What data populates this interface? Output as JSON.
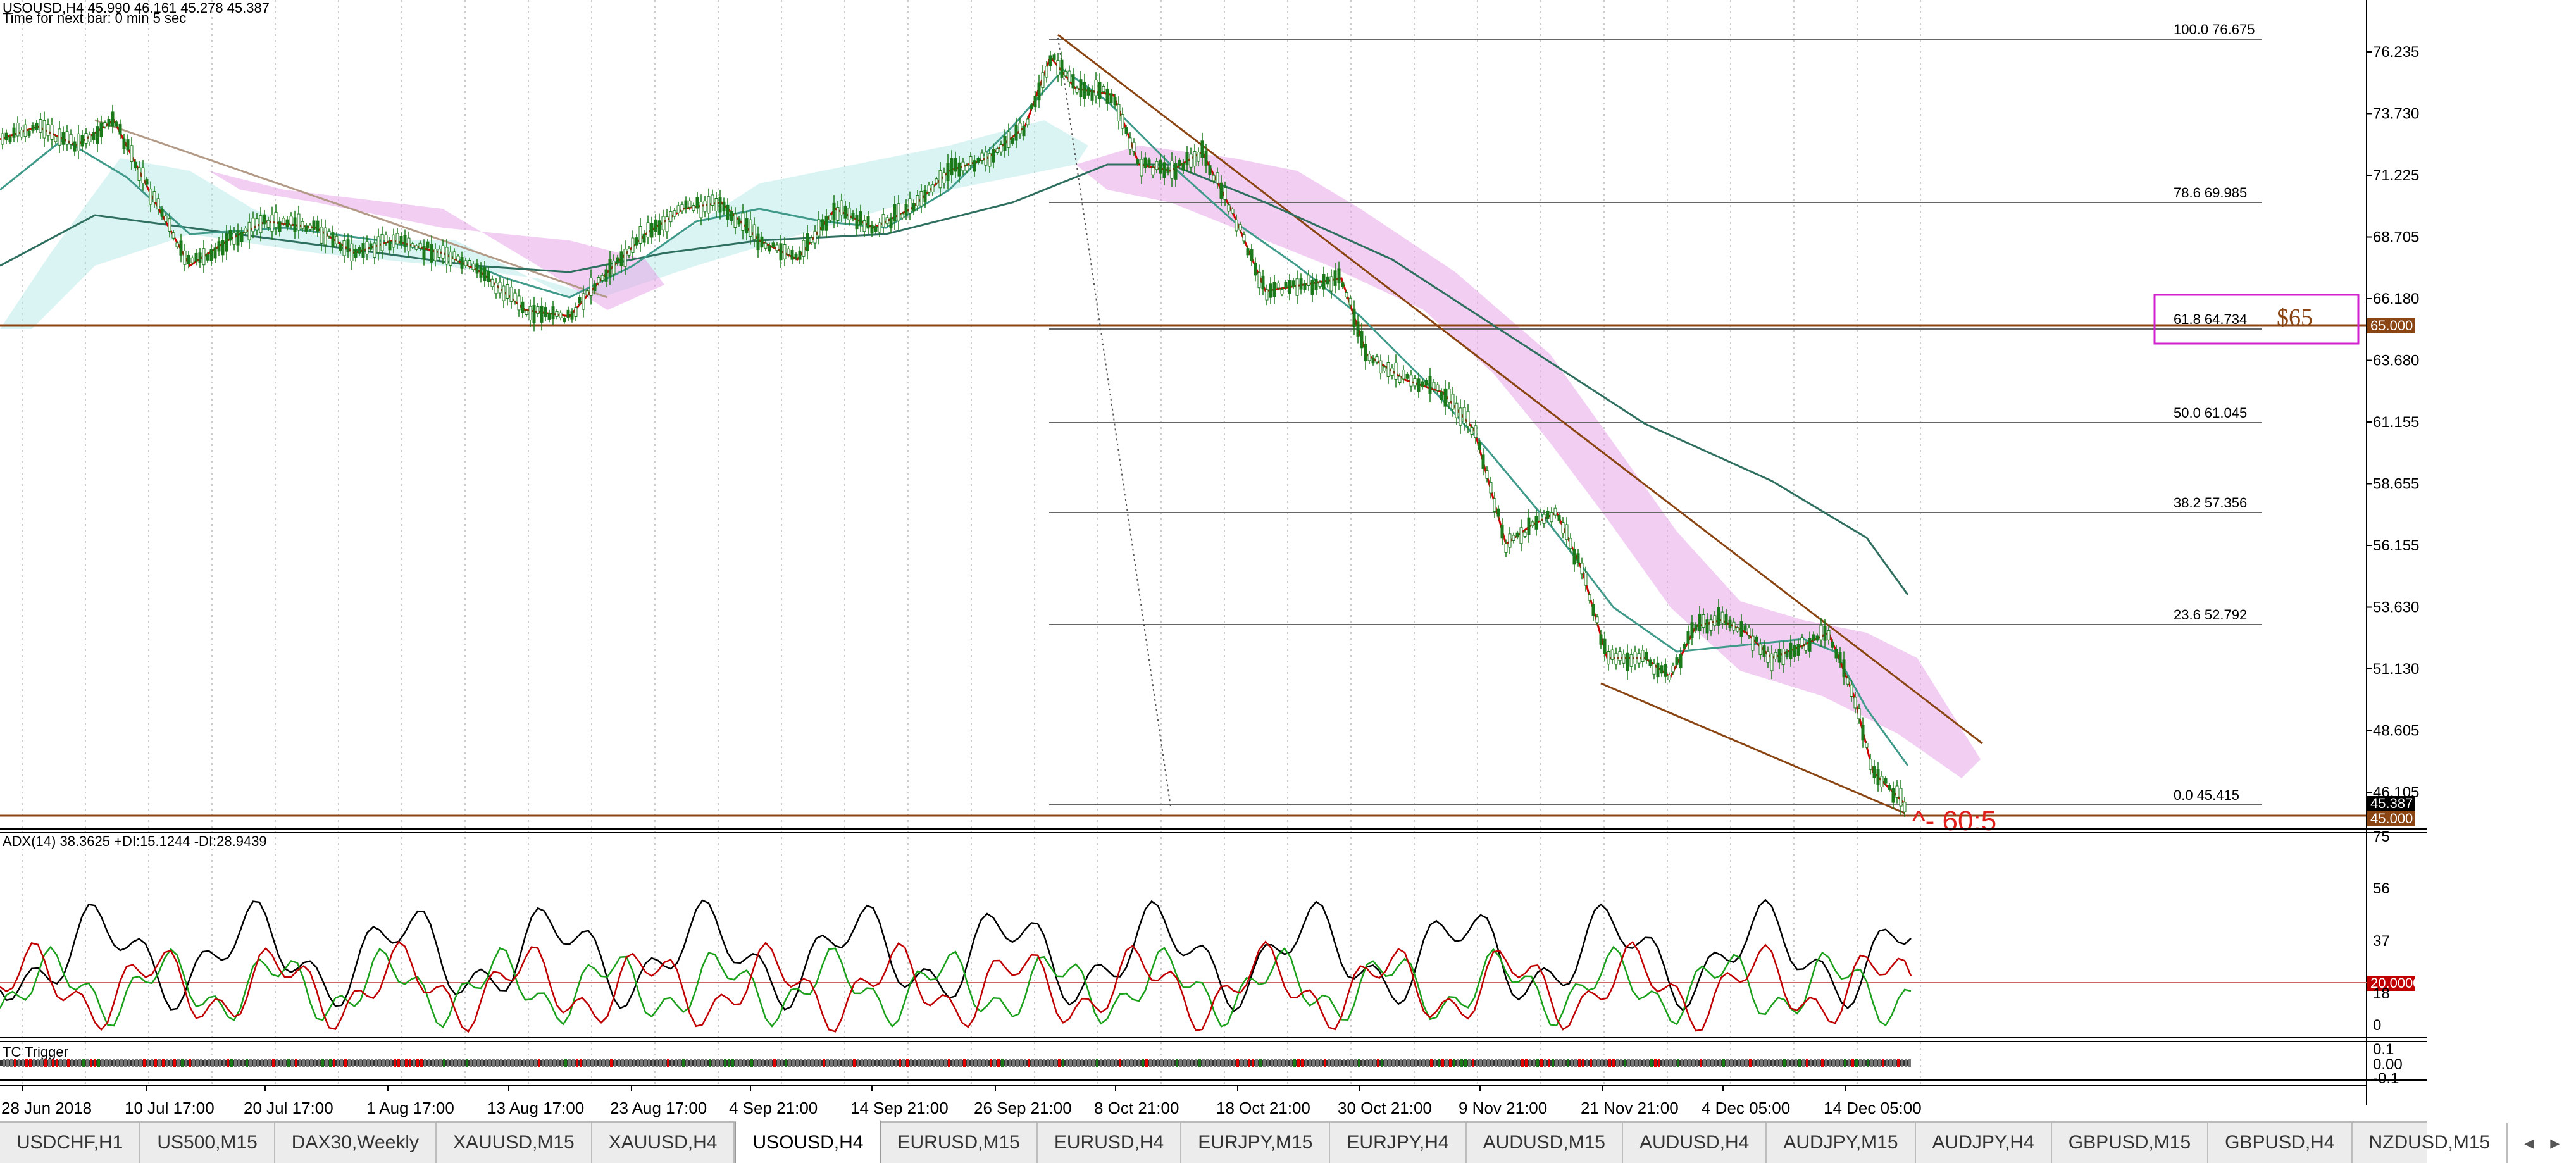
{
  "header": {
    "symbol_line": "USOUSD,H4  45.990 46.161 45.278 45.387",
    "timer_line": "Time for next bar: 0 min 5 sec"
  },
  "price_axis": {
    "labels": [
      "76.235",
      "73.730",
      "71.225",
      "68.705",
      "66.180",
      "63.680",
      "61.155",
      "58.655",
      "56.155",
      "53.630",
      "51.130",
      "48.605",
      "46.105"
    ],
    "current_price": "45.387",
    "line_65": "65.000",
    "line_45": "45.000"
  },
  "fib_levels": [
    {
      "level": "100.0",
      "price": "76.675"
    },
    {
      "level": "78.6",
      "price": "69.985"
    },
    {
      "level": "61.8",
      "price": "64.734"
    },
    {
      "level": "50.0",
      "price": "61.045"
    },
    {
      "level": "38.2",
      "price": "57.356"
    },
    {
      "level": "23.6",
      "price": "52.792"
    },
    {
      "level": "0.0",
      "price": "45.415"
    }
  ],
  "annotations": {
    "box_label": "$65",
    "target_label": "^- 60:5"
  },
  "adx": {
    "title": "ADX(14) 38.3625 +DI:15.1244 -DI:28.9439",
    "axis_labels": [
      "75",
      "56",
      "37",
      "18",
      "0"
    ],
    "level": "20.0000"
  },
  "trigger": {
    "title": "TC Trigger",
    "axis_labels": [
      "0.1",
      "0.00",
      "-0.1"
    ]
  },
  "time_axis": [
    "28 Jun 2018",
    "10 Jul 17:00",
    "20 Jul 17:00",
    "1 Aug 17:00",
    "13 Aug 17:00",
    "23 Aug 17:00",
    "4 Sep 21:00",
    "14 Sep 21:00",
    "26 Sep 21:00",
    "8 Oct 21:00",
    "18 Oct 21:00",
    "30 Oct 21:00",
    "9 Nov 21:00",
    "21 Nov 21:00",
    "4 Dec 05:00",
    "14 Dec 05:00"
  ],
  "tabs": [
    "USDCHF,H1",
    "US500,M15",
    "DAX30,Weekly",
    "XAUUSD,M15",
    "XAUUSD,H4",
    "USOUSD,H4",
    "EURUSD,M15",
    "EURUSD,H4",
    "EURJPY,M15",
    "EURJPY,H4",
    "AUDUSD,M15",
    "AUDUSD,H4",
    "AUDJPY,M15",
    "AUDJPY,H4",
    "GBPUSD,M15",
    "GBPUSD,H4",
    "NZDUSD,M15"
  ],
  "active_tab": "USOUSD,H4",
  "colors": {
    "candles": "#1a7a1a",
    "ma_red": "#d00000",
    "ma_teal": "#3f9a8a",
    "ma_dark": "#2f6f5f",
    "trendline": "#8b4513",
    "cloud": "#d98fe0",
    "box": "#d020d0",
    "di_plus": "#1aa01a",
    "di_minus": "#c00000"
  }
}
